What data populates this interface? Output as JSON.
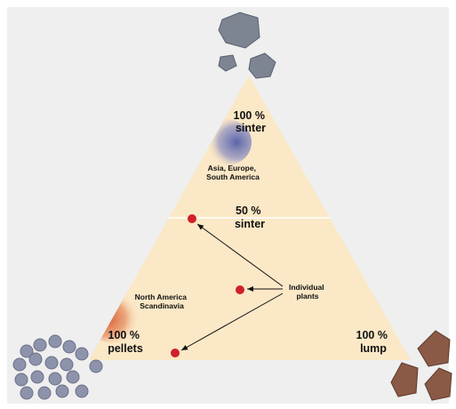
{
  "labels": {
    "sinter_100": [
      "100 %",
      "sinter"
    ],
    "asia": [
      "Asia, Europe,",
      "South America"
    ],
    "sinter_50": [
      "50 %",
      "sinter"
    ],
    "north_america": [
      "North America",
      "Scandinavia"
    ],
    "plants": [
      "Individual",
      "plants"
    ],
    "pellets_100": [
      "100 %",
      "pellets"
    ],
    "lump_100": [
      "100 %",
      "lump"
    ]
  }
}
